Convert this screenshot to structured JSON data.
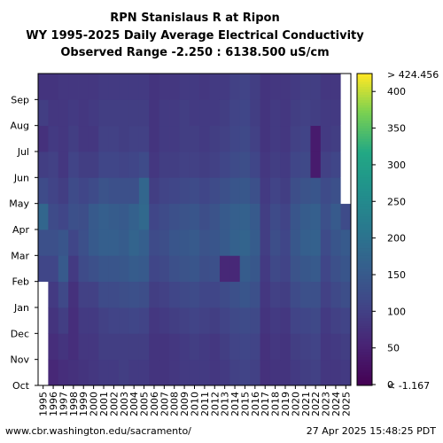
{
  "chart_data": {
    "type": "heatmap",
    "title": [
      "RPN Stanislaus R at Ripon",
      "WY 1995-2025 Daily Average Electrical Conductivity",
      "Observed Range -2.250 : 6138.500 uS/cm"
    ],
    "x_categories": [
      "1995",
      "1996",
      "1997",
      "1998",
      "1999",
      "2000",
      "2001",
      "2002",
      "2003",
      "2004",
      "2005",
      "2006",
      "2007",
      "2008",
      "2009",
      "2010",
      "2011",
      "2012",
      "2013",
      "2014",
      "2015",
      "2016",
      "2017",
      "2018",
      "2019",
      "2020",
      "2021",
      "2022",
      "2023",
      "2024",
      "2025"
    ],
    "y_categories": [
      "Oct",
      "Nov",
      "Dec",
      "Jan",
      "Feb",
      "Mar",
      "Apr",
      "May",
      "Jun",
      "Jul",
      "Aug",
      "Sep"
    ],
    "colorbar": {
      "min": -1.167,
      "max": 424.456,
      "ticks": [
        0,
        50,
        100,
        150,
        200,
        250,
        300,
        350,
        400
      ],
      "top_label": "> 424.456",
      "bottom_label": "< -1.167",
      "colormap": "viridis",
      "over_color": "#fde725",
      "under_color": "#440154"
    },
    "missing_color": "#ffffff",
    "values_by_month_approx": {
      "note_months": [
        "Oct",
        "Nov",
        "Dec",
        "Jan",
        "Feb",
        "Mar",
        "Apr",
        "May",
        "Jun",
        "Jul",
        "Aug",
        "Sep"
      ],
      "1995": [
        null,
        null,
        null,
        null,
        110,
        130,
        175,
        120,
        95,
        75,
        95,
        80
      ],
      "1996": [
        60,
        70,
        80,
        90,
        110,
        130,
        120,
        105,
        100,
        90,
        85,
        80
      ],
      "1997": [
        70,
        80,
        95,
        115,
        150,
        140,
        110,
        95,
        85,
        85,
        85,
        85
      ],
      "1998": [
        75,
        70,
        70,
        75,
        90,
        110,
        130,
        120,
        105,
        95,
        90,
        85
      ],
      "1999": [
        80,
        85,
        90,
        100,
        120,
        130,
        125,
        110,
        95,
        85,
        85,
        85
      ],
      "2000": [
        85,
        85,
        90,
        100,
        130,
        150,
        150,
        120,
        95,
        85,
        90,
        85
      ],
      "2001": [
        90,
        95,
        100,
        120,
        140,
        160,
        160,
        135,
        110,
        100,
        95,
        90
      ],
      "2002": [
        90,
        95,
        105,
        120,
        140,
        160,
        155,
        130,
        110,
        100,
        95,
        90
      ],
      "2003": [
        95,
        95,
        105,
        125,
        145,
        155,
        150,
        130,
        105,
        95,
        95,
        90
      ],
      "2004": [
        90,
        95,
        110,
        130,
        155,
        170,
        165,
        130,
        110,
        100,
        95,
        90
      ],
      "2005": [
        90,
        95,
        105,
        125,
        150,
        160,
        180,
        175,
        120,
        100,
        95,
        90
      ],
      "2006": [
        80,
        80,
        85,
        95,
        110,
        120,
        110,
        95,
        85,
        80,
        80,
        80
      ],
      "2007": [
        80,
        80,
        90,
        100,
        115,
        125,
        120,
        105,
        95,
        90,
        90,
        85
      ],
      "2008": [
        85,
        85,
        95,
        110,
        130,
        140,
        130,
        110,
        95,
        90,
        90,
        85
      ],
      "2009": [
        90,
        90,
        100,
        115,
        135,
        145,
        135,
        115,
        100,
        95,
        95,
        90
      ],
      "2010": [
        90,
        95,
        105,
        120,
        140,
        150,
        140,
        120,
        100,
        95,
        90,
        90
      ],
      "2011": [
        90,
        90,
        100,
        110,
        125,
        135,
        125,
        110,
        95,
        90,
        90,
        85
      ],
      "2012": [
        85,
        85,
        95,
        110,
        130,
        140,
        135,
        120,
        100,
        95,
        90,
        90
      ],
      "2013": [
        90,
        95,
        105,
        120,
        60,
        150,
        150,
        130,
        110,
        100,
        95,
        90
      ],
      "2014": [
        100,
        105,
        115,
        130,
        60,
        165,
        160,
        140,
        120,
        110,
        105,
        100
      ],
      "2015": [
        105,
        110,
        120,
        140,
        155,
        170,
        165,
        145,
        125,
        115,
        110,
        105
      ],
      "2016": [
        100,
        105,
        115,
        130,
        145,
        155,
        150,
        130,
        110,
        100,
        95,
        95
      ],
      "2017": [
        75,
        75,
        80,
        85,
        90,
        95,
        95,
        90,
        85,
        80,
        80,
        80
      ],
      "2018": [
        80,
        85,
        90,
        100,
        115,
        125,
        120,
        105,
        95,
        90,
        90,
        85
      ],
      "2019": [
        80,
        80,
        85,
        95,
        105,
        110,
        105,
        95,
        90,
        85,
        85,
        85
      ],
      "2020": [
        90,
        95,
        105,
        120,
        135,
        145,
        140,
        125,
        110,
        100,
        95,
        90
      ],
      "2021": [
        95,
        100,
        110,
        130,
        145,
        160,
        155,
        135,
        115,
        105,
        100,
        95
      ],
      "2022": [
        100,
        105,
        115,
        130,
        150,
        165,
        160,
        140,
        40,
        40,
        95,
        95
      ],
      "2023": [
        85,
        85,
        90,
        100,
        110,
        120,
        130,
        120,
        100,
        90,
        90,
        85
      ],
      "2024": [
        85,
        90,
        100,
        115,
        130,
        140,
        150,
        130,
        110,
        95,
        90,
        85
      ],
      "2025": [
        90,
        95,
        105,
        125,
        140,
        150,
        120,
        null,
        null,
        null,
        null,
        null
      ]
    }
  },
  "footer": {
    "source": "www.cbr.washington.edu/sacramento/",
    "timestamp": "27 Apr 2025 15:48:25 PDT"
  }
}
